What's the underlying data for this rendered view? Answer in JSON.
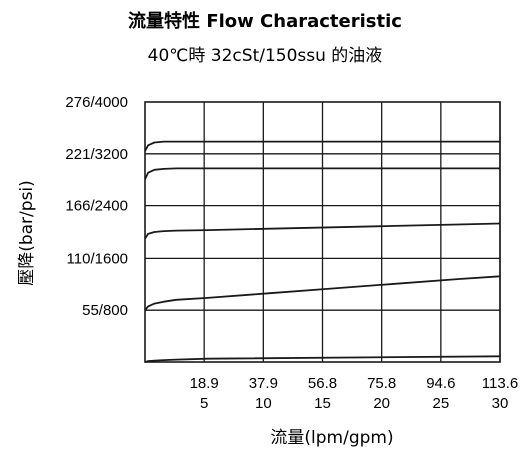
{
  "chart_data": {
    "type": "line",
    "title": "流量特性  Flow Characteristic",
    "subtitle": "40℃時 32cSt/150ssu 的油液",
    "xlabel": "流量(lpm/gpm)",
    "ylabel": "壓降(bar/psi)",
    "x_tick_labels_lpm": [
      "18.9",
      "37.9",
      "56.8",
      "75.8",
      "94.6",
      "113.6"
    ],
    "x_tick_labels_gpm": [
      "5",
      "10",
      "15",
      "20",
      "25",
      "30"
    ],
    "y_tick_labels": [
      "55/800",
      "110/1600",
      "166/2400",
      "221/3200",
      "276/4000"
    ],
    "y_tick_values": [
      55,
      110,
      166,
      221,
      276
    ],
    "xlim": [
      0,
      113.6
    ],
    "ylim": [
      0,
      276
    ],
    "grid": true,
    "colors": {
      "line": "#1a1a1a",
      "grid": "#1a1a1a"
    },
    "series": [
      {
        "x": [
          0,
          1,
          3,
          6,
          10,
          20,
          113.6
        ],
        "y": [
          0,
          1,
          1.5,
          2,
          2.5,
          3.5,
          6
        ]
      },
      {
        "x": [
          0,
          1,
          3,
          6,
          10,
          20,
          40,
          60,
          80,
          100,
          113.6
        ],
        "y": [
          55,
          59,
          62,
          64,
          66,
          68,
          73,
          78,
          83,
          88,
          91
        ]
      },
      {
        "x": [
          0,
          1,
          3,
          6,
          10,
          20,
          40,
          60,
          80,
          100,
          113.6
        ],
        "y": [
          131,
          136,
          138,
          139,
          139.5,
          140,
          141.5,
          143,
          144.5,
          146,
          147
        ]
      },
      {
        "x": [
          0,
          1,
          3,
          6,
          10,
          20,
          113.6
        ],
        "y": [
          194,
          201,
          204,
          205,
          205.5,
          205.5,
          205.5
        ]
      },
      {
        "x": [
          0,
          1,
          3,
          6,
          10,
          20,
          113.6
        ],
        "y": [
          224,
          230,
          233,
          234,
          234,
          234,
          234
        ]
      }
    ]
  }
}
